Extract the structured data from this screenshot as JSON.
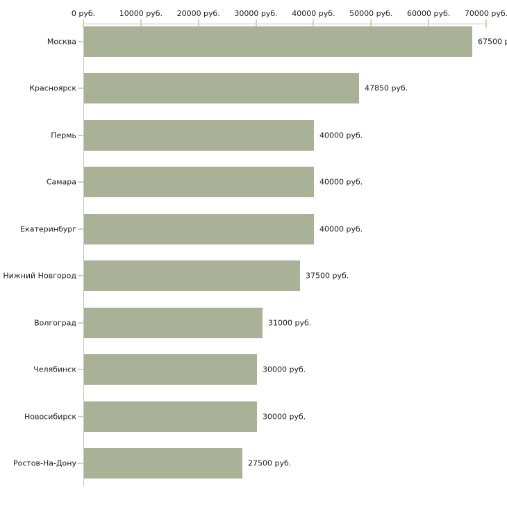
{
  "chart_data": {
    "type": "bar",
    "orientation": "horizontal",
    "title": "",
    "xlabel": "",
    "ylabel": "",
    "grid": false,
    "legend": false,
    "categories": [
      "Москва",
      "Красноярск",
      "Пермь",
      "Самара",
      "Екатеринбург",
      "Нижний Новгород",
      "Волгоград",
      "Челябинск",
      "Новосибирск",
      "Ростов-На-Дону"
    ],
    "values": [
      67500,
      47850,
      40000,
      40000,
      40000,
      37500,
      31000,
      30000,
      30000,
      27500
    ],
    "value_labels": [
      "67500 р",
      "47850 руб.",
      "40000 руб.",
      "40000 руб.",
      "40000 руб.",
      "37500 руб.",
      "31000 руб.",
      "30000 руб.",
      "30000 руб.",
      "27500 руб."
    ],
    "x_axis": {
      "position": "top",
      "min": 0,
      "max": 70000,
      "tick_values": [
        0,
        10000,
        20000,
        30000,
        40000,
        50000,
        60000,
        70000
      ],
      "tick_labels": [
        "0 руб.",
        "10000 руб.",
        "20000 руб.",
        "30000 руб.",
        "40000 руб.",
        "50000 руб.",
        "60000 руб.",
        "70000 руб."
      ]
    },
    "colors": {
      "bar": "#a9b297",
      "tick": "#d2d3a6",
      "axis_line": "#c2c2c2",
      "text": "#1a1a1a",
      "background": "#ffffff"
    }
  }
}
